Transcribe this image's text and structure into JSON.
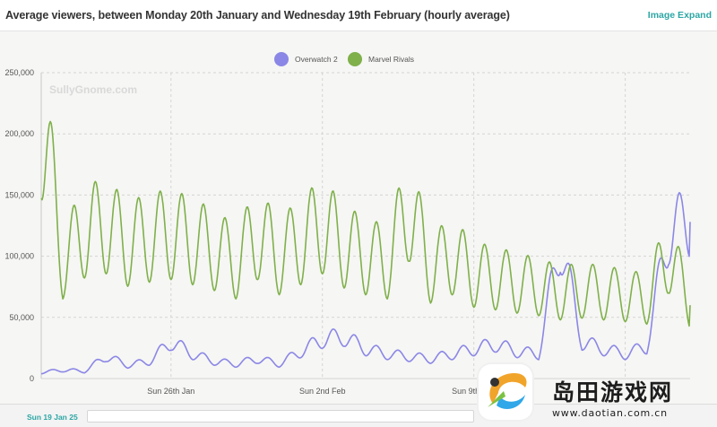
{
  "header": {
    "title": "Average viewers, between Monday 20th January and Wednesday 19th February (hourly average)",
    "expand_label": "Image Expand"
  },
  "watermark": "SullyGnome.com",
  "footer": {
    "range_start": "Sun 19 Jan 25"
  },
  "logo": {
    "brand": "岛田游戏网",
    "url": "www.daotian.com.cn"
  },
  "colors": {
    "overwatch": "#8b87e6",
    "marvel": "#7fb04a",
    "background": "#f6f6f4",
    "accent": "#2ca6a4"
  },
  "chart_data": {
    "type": "line",
    "title": "Average viewers, between Monday 20th January and Wednesday 19th February (hourly average)",
    "legend_position": "top",
    "grid": true,
    "ylim": [
      0,
      250000
    ],
    "yticks": [
      "0",
      "50,000",
      "100,000",
      "150,000",
      "200,000",
      "250,000"
    ],
    "x_range": [
      "2025-01-20",
      "2025-02-19"
    ],
    "xticks": [
      "Sun 26th Jan",
      "Sun 2nd Feb",
      "Sun 9th Feb"
    ],
    "series": [
      {
        "name": "Overwatch 2",
        "color": "#8b87e6",
        "daily_points": [
          [
            "2025-01-20",
            5000
          ],
          [
            "2025-01-21",
            7000
          ],
          [
            "2025-01-22",
            6000
          ],
          [
            "2025-01-23",
            18000
          ],
          [
            "2025-01-24",
            11000
          ],
          [
            "2025-01-25",
            14000
          ],
          [
            "2025-01-26",
            30000
          ],
          [
            "2025-01-27",
            20000
          ],
          [
            "2025-01-28",
            14000
          ],
          [
            "2025-01-29",
            12000
          ],
          [
            "2025-01-30",
            16000
          ],
          [
            "2025-01-31",
            12000
          ],
          [
            "2025-02-01",
            22000
          ],
          [
            "2025-02-02",
            32000
          ],
          [
            "2025-02-03",
            34000
          ],
          [
            "2025-02-04",
            24000
          ],
          [
            "2025-02-05",
            20000
          ],
          [
            "2025-02-06",
            18000
          ],
          [
            "2025-02-07",
            16000
          ],
          [
            "2025-02-08",
            20000
          ],
          [
            "2025-02-09",
            24000
          ],
          [
            "2025-02-10",
            28000
          ],
          [
            "2025-02-11",
            22000
          ],
          [
            "2025-02-12",
            20000
          ],
          [
            "2025-02-13",
            112000
          ],
          [
            "2025-02-14",
            30000
          ],
          [
            "2025-02-15",
            24000
          ],
          [
            "2025-02-16",
            20000
          ],
          [
            "2025-02-17",
            26000
          ],
          [
            "2025-02-18",
            120000
          ],
          [
            "2025-02-19",
            128000
          ]
        ]
      },
      {
        "name": "Marvel Rivals",
        "color": "#7fb04a",
        "daily_points": [
          [
            "2025-01-20",
            215000
          ],
          [
            "2025-01-21",
            95000
          ],
          [
            "2025-01-22",
            120000
          ],
          [
            "2025-01-23",
            125000
          ],
          [
            "2025-01-24",
            110000
          ],
          [
            "2025-01-25",
            115000
          ],
          [
            "2025-01-26",
            118000
          ],
          [
            "2025-01-27",
            112000
          ],
          [
            "2025-01-28",
            105000
          ],
          [
            "2025-01-29",
            95000
          ],
          [
            "2025-01-30",
            118000
          ],
          [
            "2025-01-31",
            100000
          ],
          [
            "2025-02-01",
            112000
          ],
          [
            "2025-02-02",
            125000
          ],
          [
            "2025-02-03",
            108000
          ],
          [
            "2025-02-04",
            100000
          ],
          [
            "2025-02-05",
            95000
          ],
          [
            "2025-02-06",
            140000
          ],
          [
            "2025-02-07",
            90000
          ],
          [
            "2025-02-08",
            100000
          ],
          [
            "2025-02-09",
            85000
          ],
          [
            "2025-02-10",
            82000
          ],
          [
            "2025-02-11",
            78000
          ],
          [
            "2025-02-12",
            75000
          ],
          [
            "2025-02-13",
            70000
          ],
          [
            "2025-02-14",
            72000
          ],
          [
            "2025-02-15",
            70000
          ],
          [
            "2025-02-16",
            68000
          ],
          [
            "2025-02-17",
            65000
          ],
          [
            "2025-02-18",
            102000
          ],
          [
            "2025-02-19",
            60000
          ]
        ]
      }
    ]
  }
}
